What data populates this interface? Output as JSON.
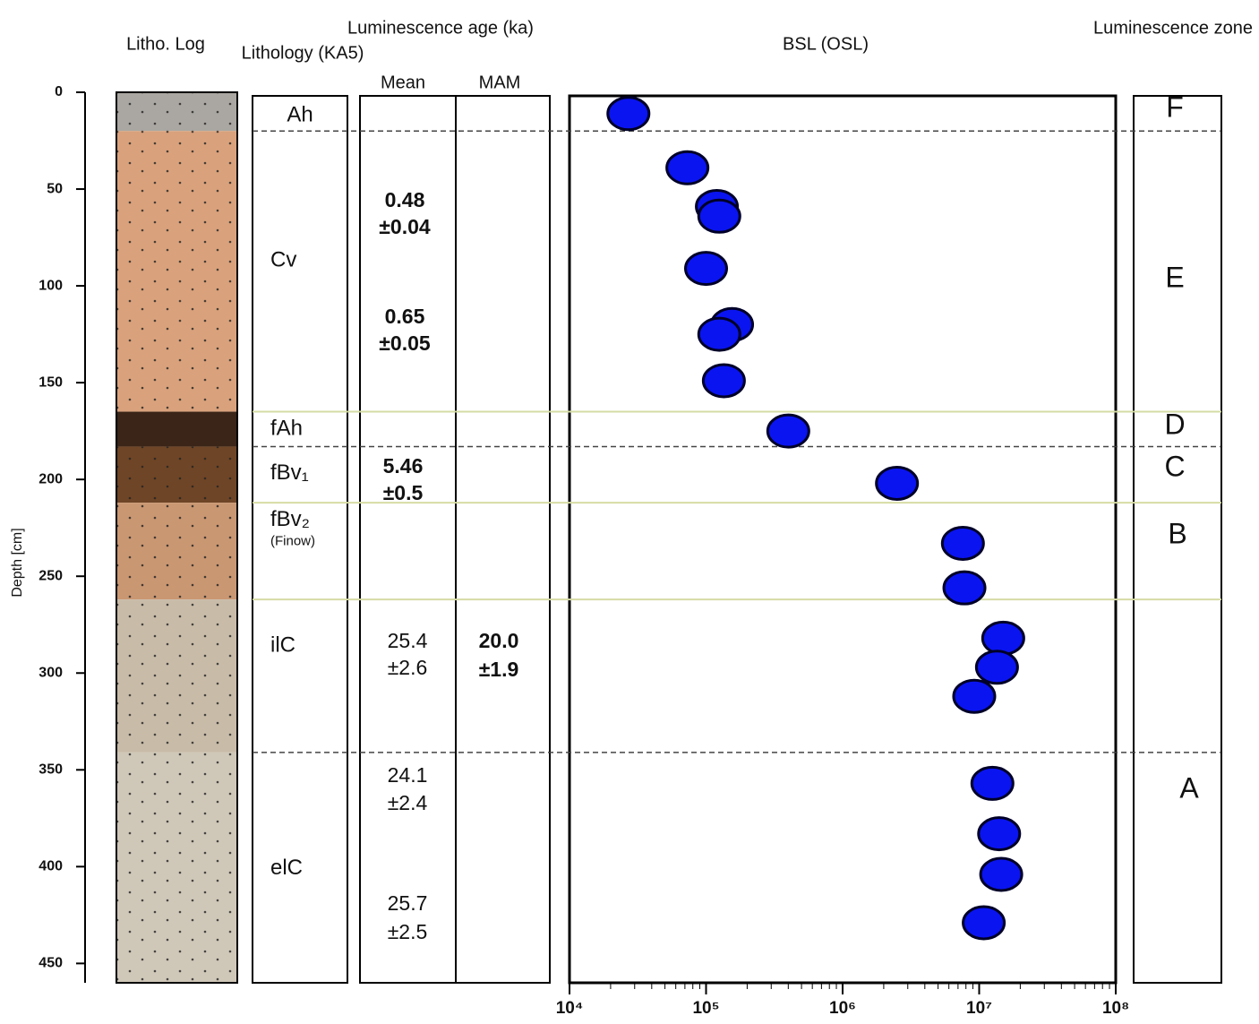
{
  "chart_data": {
    "type": "scatter",
    "title": "BSL (OSL)",
    "y_label": "Depth [cm]",
    "headers": {
      "litho_log": "Litho. Log",
      "lithology": "Lithology (KA5)",
      "age": "Luminescence age (ka)",
      "mean": "Mean",
      "mam": "MAM",
      "zone": "Luminescence zone"
    },
    "ylim": [
      0,
      460
    ],
    "y_inverted": true,
    "yticks": [
      0,
      50,
      100,
      150,
      200,
      250,
      300,
      350,
      400,
      450
    ],
    "xlim": [
      10000,
      100000000
    ],
    "x_log": true,
    "xticks": [
      {
        "value": 10000,
        "label": "10⁴"
      },
      {
        "value": 100000,
        "label": "10⁵"
      },
      {
        "value": 1000000,
        "label": "10⁶"
      },
      {
        "value": 10000000,
        "label": "10⁷"
      },
      {
        "value": 100000000,
        "label": "10⁸"
      }
    ],
    "series": [
      {
        "color": "#0a14f0",
        "x": [
          27000,
          73000,
          120000,
          125000,
          100000,
          155000,
          125000,
          135000,
          400000,
          2500000,
          7600000,
          7800000,
          15000000,
          13500000,
          9200000,
          12500000,
          14000000,
          14500000,
          10800000
        ],
        "y": [
          11,
          39,
          59,
          64,
          91,
          120,
          125,
          149,
          175,
          202,
          233,
          256,
          282,
          297,
          312,
          357,
          383,
          404,
          429
        ]
      }
    ],
    "layers": [
      {
        "name": "Ah",
        "top": 0,
        "bottom": 20
      },
      {
        "name": "Cv",
        "top": 20,
        "bottom": 165
      },
      {
        "name": "fAh",
        "top": 165,
        "bottom": 183
      },
      {
        "name": "fBv₁",
        "top": 183,
        "bottom": 212
      },
      {
        "name": "fBv₂",
        "note": "(Finow)",
        "top": 212,
        "bottom": 262
      },
      {
        "name": "ilC",
        "top": 262,
        "bottom": 341
      },
      {
        "name": "elC",
        "top": 341,
        "bottom": 460
      }
    ],
    "mean_ages": [
      [
        "0.48",
        "±0.04"
      ],
      [
        "0.65",
        "±0.05"
      ],
      [
        "5.46",
        "±0.5"
      ],
      [
        "25.4",
        "±2.6"
      ],
      [
        "24.1",
        "±2.4"
      ],
      [
        "25.7",
        "±2.5"
      ]
    ],
    "mam_ages": [
      [
        "20.0",
        "±1.9"
      ]
    ],
    "zones": [
      "F",
      "E",
      "D",
      "C",
      "B",
      "A"
    ],
    "dashed_boundaries": [
      20,
      183,
      341
    ],
    "solid_boundaries": [
      165,
      212,
      262
    ]
  }
}
